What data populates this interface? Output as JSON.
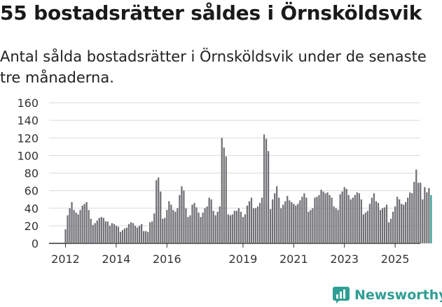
{
  "title": "55 bostadsrätter såldes i Örnsköldsvik",
  "subtitle": "Antal sålda bostadsrätter i Örnsköldsvik under de senaste tre månaderna.",
  "brand": {
    "name": "Newsworthy",
    "color": "#2f9e94"
  },
  "colors": {
    "bar": "#6e6d72",
    "highlight": "#2a9d8f"
  },
  "chart_data": {
    "type": "bar",
    "ylim": [
      0,
      160
    ],
    "yticks": [
      0,
      20,
      40,
      60,
      80,
      100,
      120,
      140,
      160
    ],
    "x_tick_labels": [
      "2012",
      "2014",
      "2016",
      "2019",
      "2021",
      "2023",
      "2025"
    ],
    "x_tick_positions": [
      2012,
      2014,
      2016,
      2019,
      2021,
      2023,
      2025
    ],
    "x_start": 2012.0,
    "x_step": 0.0833333,
    "grid": true,
    "values": [
      16,
      32,
      40,
      47,
      38,
      35,
      33,
      38,
      43,
      45,
      47,
      38,
      28,
      21,
      23,
      26,
      29,
      30,
      29,
      25,
      25,
      20,
      23,
      22,
      20,
      19,
      13,
      15,
      17,
      18,
      22,
      24,
      23,
      20,
      18,
      20,
      22,
      14,
      14,
      13,
      24,
      25,
      34,
      72,
      75,
      59,
      28,
      29,
      38,
      48,
      44,
      38,
      36,
      40,
      55,
      65,
      60,
      40,
      30,
      32,
      44,
      46,
      41,
      35,
      30,
      35,
      40,
      42,
      52,
      50,
      37,
      32,
      36,
      42,
      120,
      109,
      99,
      33,
      32,
      33,
      37,
      37,
      40,
      36,
      30,
      33,
      43,
      48,
      52,
      40,
      40,
      42,
      46,
      52,
      124,
      119,
      105,
      39,
      50,
      57,
      65,
      52,
      40,
      44,
      48,
      54,
      49,
      47,
      45,
      43,
      45,
      49,
      53,
      57,
      52,
      36,
      38,
      40,
      52,
      53,
      55,
      61,
      59,
      57,
      58,
      55,
      52,
      42,
      40,
      38,
      56,
      59,
      64,
      62,
      55,
      50,
      52,
      55,
      58,
      57,
      50,
      33,
      35,
      37,
      45,
      52,
      57,
      48,
      46,
      38,
      40,
      41,
      44,
      24,
      28,
      36,
      42,
      53,
      50,
      45,
      44,
      47,
      52,
      58,
      57,
      70,
      84,
      69,
      69,
      50,
      64,
      58,
      63,
      55
    ],
    "highlight_last": true,
    "annotation": {
      "text": "55",
      "index": 175
    }
  }
}
